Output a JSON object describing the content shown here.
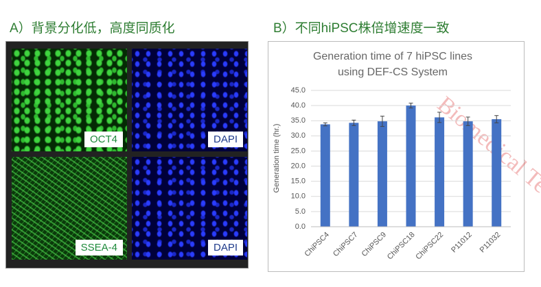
{
  "panel_a": {
    "heading": "A）背景分化低，高度同质化",
    "labels": [
      "OCT4",
      "DAPI",
      "SSEA-4",
      "DAPI"
    ]
  },
  "panel_b": {
    "heading": "B）不同hiPSC株倍增速度一致"
  },
  "watermark": "Biomedical Techno",
  "chart_data": {
    "type": "bar",
    "title": [
      "Generation time of 7 hiPSC lines",
      "using DEF-CS System"
    ],
    "ylabel": "Generation time (hr.)",
    "categories": [
      "ChiPSC4",
      "ChiPSC7",
      "ChiPSC9",
      "ChiPSC18",
      "ChiPSC22",
      "P11012",
      "P11032"
    ],
    "values": [
      33.8,
      34.3,
      34.8,
      40.0,
      36.1,
      34.8,
      35.5
    ],
    "errors": [
      0.5,
      0.9,
      1.7,
      0.8,
      1.7,
      1.4,
      1.2
    ],
    "color": "#4472c4",
    "ylim": [
      0,
      45
    ],
    "yticks": [
      {
        "value": 0,
        "label": "0.0"
      },
      {
        "value": 5,
        "label": "5.0"
      },
      {
        "value": 10,
        "label": "10.0"
      },
      {
        "value": 15,
        "label": "15.0"
      },
      {
        "value": 20,
        "label": "20.0"
      },
      {
        "value": 25,
        "label": "25.0"
      },
      {
        "value": 30,
        "label": "30.0"
      },
      {
        "value": 35,
        "label": "35.0"
      },
      {
        "value": 40,
        "label": "40.0"
      },
      {
        "value": 45,
        "label": "45.0"
      }
    ],
    "grid": true
  }
}
